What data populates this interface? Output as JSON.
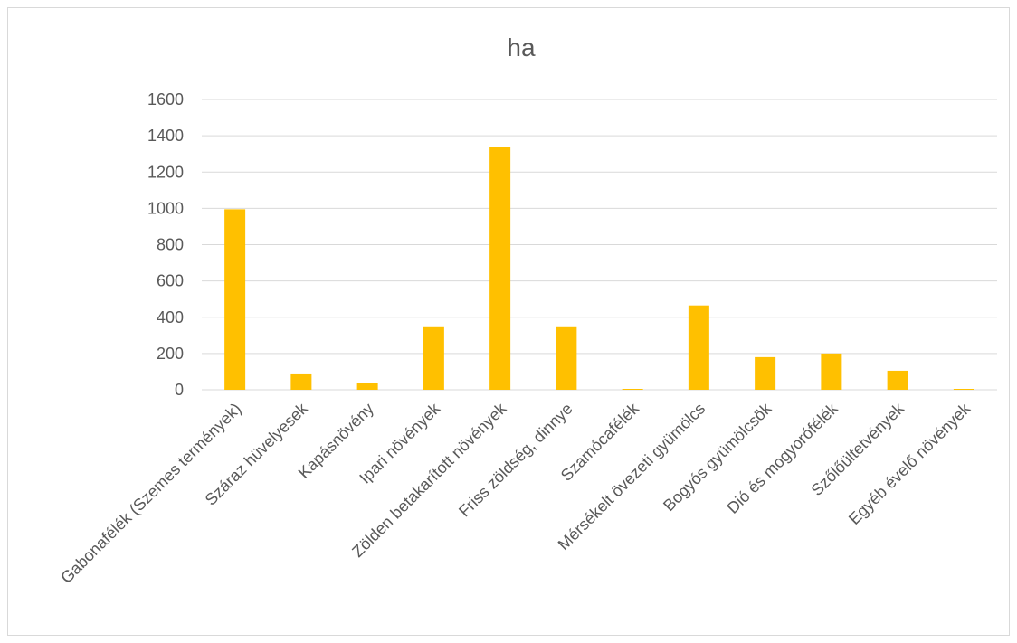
{
  "chart_data": {
    "type": "bar",
    "title": "ha",
    "xlabel": "",
    "ylabel": "",
    "categories": [
      "Gabonafélék (Szemes termények)",
      "Száraz hüvelyesek",
      "Kapásnövény",
      "Ipari növények",
      "Zölden betakarított növények",
      "Friss zöldség, dinnye",
      "Szamócafélék",
      "Mérsékelt övezeti gyümölcs",
      "Bogyós gyümölcsök",
      "Dió és mogyorófélék",
      "Szőlőültetvények",
      "Egyéb évelő növények"
    ],
    "values": [
      995,
      90,
      35,
      345,
      1340,
      345,
      5,
      465,
      180,
      200,
      105,
      5
    ],
    "ylim": [
      0,
      1600
    ],
    "yticks": [
      "0",
      "200",
      "400",
      "600",
      "800",
      "1000",
      "1200",
      "1400",
      "1600"
    ],
    "grid": true,
    "legend": "none",
    "bar_color": "#ffc000"
  }
}
